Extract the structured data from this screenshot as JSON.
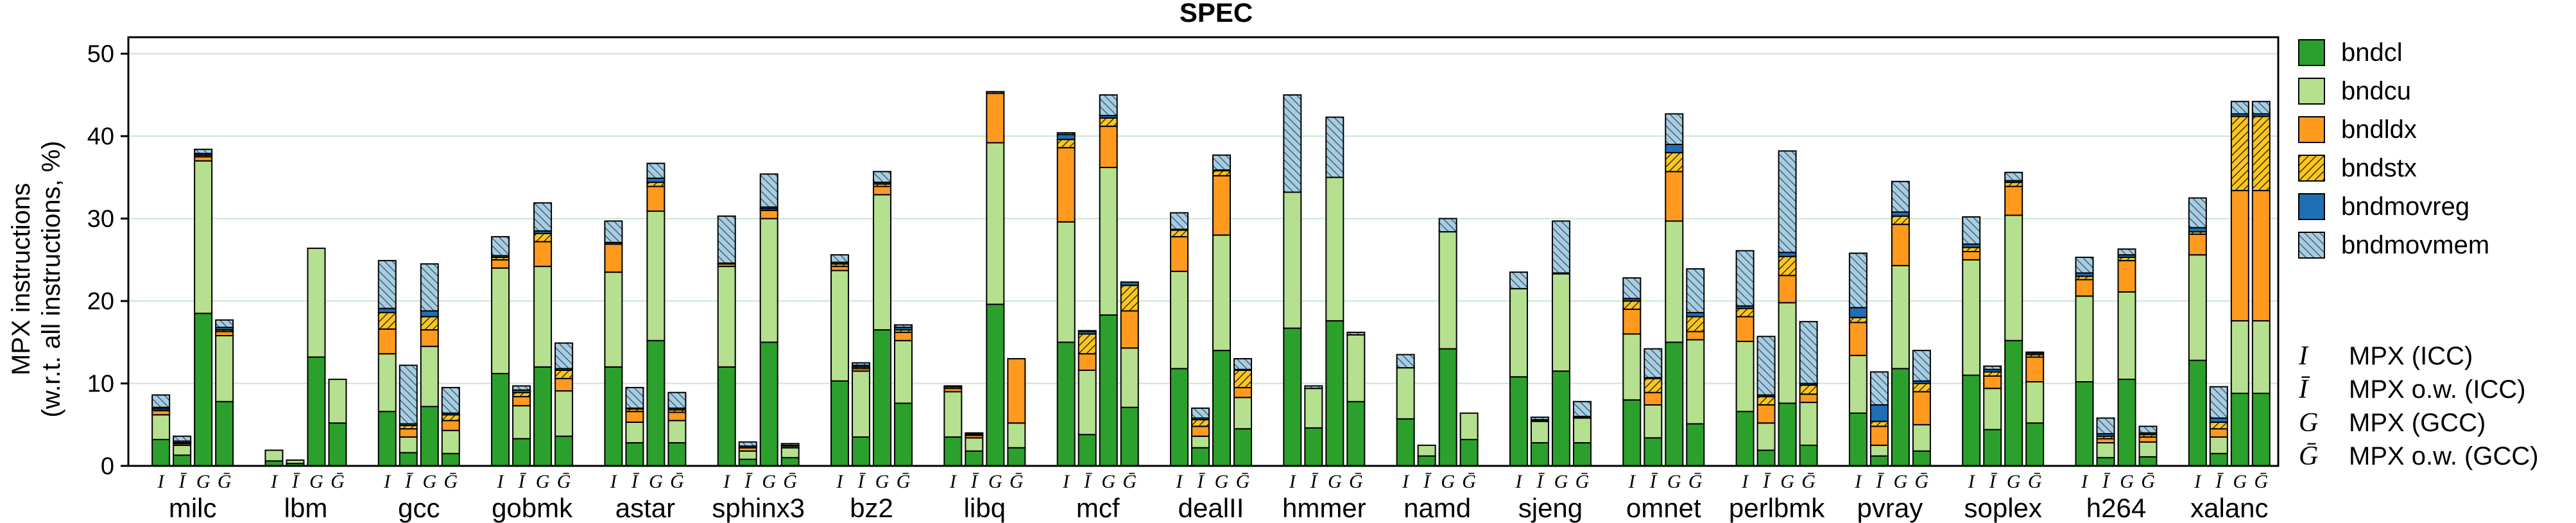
{
  "chart_data": {
    "type": "bar",
    "stacked": true,
    "title": "SPEC",
    "ylabel_lines": [
      "MPX instructions",
      "(w.r.t. all instructions, %)"
    ],
    "ylim": [
      0,
      52
    ],
    "yticks": [
      0,
      10,
      20,
      30,
      40,
      50
    ],
    "grid": "horizontal",
    "legend_position": "right",
    "categories": [
      "milc",
      "lbm",
      "gcc",
      "gobmk",
      "astar",
      "sphinx3",
      "bz2",
      "libq",
      "mcf",
      "dealII",
      "hmmer",
      "namd",
      "sjeng",
      "omnet",
      "perlbmk",
      "pvray",
      "soplex",
      "h264",
      "xalanc"
    ],
    "variants": [
      "I",
      "Ī",
      "G",
      "Ḡ"
    ],
    "variant_key": [
      {
        "symbol": "I",
        "label": "MPX (ICC)"
      },
      {
        "symbol": "Ī",
        "label": "MPX o.w. (ICC)"
      },
      {
        "symbol": "G",
        "label": "MPX (GCC)"
      },
      {
        "symbol": "Ḡ",
        "label": "MPX o.w. (GCC)"
      }
    ],
    "series": [
      {
        "name": "bndcl",
        "color": "#2ca02c",
        "pattern": "solid"
      },
      {
        "name": "bndcu",
        "color": "#b5e08f",
        "pattern": "solid"
      },
      {
        "name": "bndldx",
        "color": "#ff9a1f",
        "pattern": "solid"
      },
      {
        "name": "bndstx",
        "color": "#ffc51a",
        "pattern": "hatch"
      },
      {
        "name": "bndmovreg",
        "color": "#1f6fb4",
        "pattern": "solid"
      },
      {
        "name": "bndmovmem",
        "color": "#a6cee3",
        "pattern": "hatch"
      }
    ],
    "values": {
      "milc": [
        [
          3.2,
          3.0,
          0.5,
          0.2,
          0.2,
          1.5
        ],
        [
          1.3,
          1.2,
          0.2,
          0.1,
          0.2,
          0.6
        ],
        [
          18.5,
          18.5,
          0.5,
          0.2,
          0.2,
          0.5
        ],
        [
          7.8,
          8.0,
          0.5,
          0.2,
          0.3,
          0.9
        ]
      ],
      "lbm": [
        [
          0.6,
          1.3,
          0,
          0,
          0,
          0
        ],
        [
          0.3,
          0.4,
          0,
          0,
          0,
          0
        ],
        [
          13.2,
          13.2,
          0,
          0,
          0,
          0
        ],
        [
          5.2,
          5.3,
          0,
          0,
          0,
          0
        ]
      ],
      "gcc": [
        [
          6.6,
          7.0,
          3.0,
          2.0,
          0.5,
          5.8
        ],
        [
          1.6,
          1.9,
          1.0,
          0.4,
          0.2,
          7.1
        ],
        [
          7.2,
          7.3,
          2.0,
          1.6,
          0.7,
          5.7
        ],
        [
          1.5,
          2.8,
          1.2,
          0.7,
          0.2,
          3.1
        ]
      ],
      "gobmk": [
        [
          11.2,
          12.8,
          1.0,
          0.3,
          0.2,
          2.3
        ],
        [
          3.3,
          4.0,
          1.1,
          0.5,
          0.3,
          0.5
        ],
        [
          12.0,
          12.2,
          3.0,
          1.0,
          0.3,
          3.4
        ],
        [
          3.6,
          5.5,
          1.5,
          1.0,
          0.2,
          3.1
        ]
      ],
      "astar": [
        [
          12.0,
          11.5,
          3.4,
          0,
          0.2,
          2.6
        ],
        [
          2.8,
          2.5,
          1.3,
          0.3,
          0.1,
          2.5
        ],
        [
          15.2,
          15.7,
          3.0,
          0.5,
          0.5,
          1.8
        ],
        [
          2.8,
          2.7,
          1.0,
          0.3,
          0.2,
          1.9
        ]
      ],
      "sphinx3": [
        [
          12.0,
          12.2,
          0.3,
          0,
          0.1,
          5.7
        ],
        [
          0.8,
          1.0,
          0.4,
          0,
          0.2,
          0.5
        ],
        [
          15.0,
          15.0,
          1.0,
          0.2,
          0.2,
          4.0
        ],
        [
          1.0,
          1.2,
          0.2,
          0,
          0.1,
          0.2
        ]
      ],
      "bz2": [
        [
          10.3,
          13.4,
          0.5,
          0.3,
          0.2,
          0.9
        ],
        [
          3.5,
          8.0,
          0.3,
          0.2,
          0.2,
          0.3
        ],
        [
          16.5,
          16.4,
          1.0,
          0.3,
          0.2,
          1.3
        ],
        [
          7.6,
          7.6,
          1.0,
          0.3,
          0.3,
          0.3
        ]
      ],
      "libq": [
        [
          3.5,
          5.5,
          0.4,
          0.2,
          0.1,
          0
        ],
        [
          1.8,
          1.6,
          0.3,
          0.1,
          0.1,
          0.1
        ],
        [
          19.6,
          19.6,
          6.0,
          0,
          0,
          0.2
        ],
        [
          2.2,
          3.0,
          7.8,
          0,
          0,
          0
        ]
      ],
      "mcf": [
        [
          15.0,
          14.6,
          9.0,
          1.0,
          0.6,
          0.2
        ],
        [
          3.8,
          7.8,
          2.0,
          2.4,
          0.3,
          0.1
        ],
        [
          18.3,
          17.9,
          5.0,
          1.0,
          0.3,
          2.5
        ],
        [
          7.1,
          7.2,
          4.5,
          3.1,
          0.4,
          0
        ]
      ],
      "dealII": [
        [
          11.8,
          11.8,
          4.2,
          0.8,
          0.1,
          2.0
        ],
        [
          2.2,
          1.4,
          1.2,
          0.8,
          0.2,
          1.2
        ],
        [
          14.0,
          14.0,
          7.2,
          0.6,
          0.1,
          1.8
        ],
        [
          4.5,
          3.8,
          1.2,
          2.1,
          0.1,
          1.3
        ]
      ],
      "hmmer": [
        [
          16.7,
          16.5,
          0,
          0,
          0,
          11.8
        ],
        [
          4.6,
          4.8,
          0,
          0,
          0,
          0.3
        ],
        [
          17.6,
          17.4,
          0,
          0,
          0,
          7.3
        ],
        [
          7.8,
          8.1,
          0,
          0,
          0,
          0.3
        ]
      ],
      "namd": [
        [
          5.7,
          6.2,
          0,
          0,
          0,
          1.6
        ],
        [
          1.2,
          1.3,
          0,
          0,
          0,
          0
        ],
        [
          14.2,
          14.2,
          0,
          0,
          0,
          1.6
        ],
        [
          3.2,
          3.2,
          0,
          0,
          0,
          0
        ]
      ],
      "sjeng": [
        [
          10.8,
          10.7,
          0,
          0,
          0,
          2.0
        ],
        [
          2.8,
          2.6,
          0.1,
          0.1,
          0,
          0.3
        ],
        [
          11.5,
          11.8,
          0.1,
          0,
          0,
          6.3
        ],
        [
          2.8,
          3.0,
          0.1,
          0.1,
          0,
          1.8
        ]
      ],
      "omnet": [
        [
          8.0,
          8.0,
          3.0,
          1.0,
          0.3,
          2.5
        ],
        [
          3.4,
          4.0,
          1.5,
          1.7,
          0.1,
          3.5
        ],
        [
          15.0,
          14.7,
          6.0,
          2.3,
          1.0,
          3.7
        ],
        [
          5.1,
          10.2,
          1.0,
          1.8,
          0.5,
          5.3
        ]
      ],
      "perlbmk": [
        [
          6.6,
          8.5,
          3.0,
          1.0,
          0.3,
          6.7
        ],
        [
          1.9,
          3.3,
          2.2,
          1.0,
          0.2,
          7.1
        ],
        [
          7.6,
          12.2,
          3.3,
          2.3,
          0.5,
          12.3
        ],
        [
          2.5,
          5.2,
          1.0,
          1.1,
          0.2,
          7.5
        ]
      ],
      "pvray": [
        [
          6.4,
          7.0,
          4.0,
          0.6,
          1.2,
          6.6
        ],
        [
          1.2,
          1.3,
          2.3,
          0.6,
          2.0,
          4.0
        ],
        [
          11.8,
          12.5,
          5.0,
          1.0,
          0.5,
          3.7
        ],
        [
          1.8,
          3.2,
          4.0,
          1.0,
          0.3,
          3.7
        ]
      ],
      "soplex": [
        [
          11.0,
          14.0,
          1.0,
          0.5,
          0.4,
          3.3
        ],
        [
          4.4,
          5.0,
          1.5,
          0.5,
          0.3,
          0.4
        ],
        [
          15.2,
          15.2,
          3.5,
          0.5,
          0.2,
          1.0
        ],
        [
          5.2,
          5.0,
          3.0,
          0.3,
          0.2,
          0.1
        ]
      ],
      "h264": [
        [
          10.2,
          10.4,
          2.0,
          0.4,
          0.4,
          1.9
        ],
        [
          1.0,
          1.8,
          0.5,
          0.3,
          0.3,
          1.9
        ],
        [
          10.5,
          10.6,
          3.8,
          0.4,
          0.3,
          0.7
        ],
        [
          1.1,
          1.8,
          0.6,
          0.3,
          0.2,
          0.8
        ]
      ],
      "xalanc": [
        [
          12.8,
          12.8,
          2.5,
          0.3,
          0.5,
          3.6
        ],
        [
          1.5,
          2.0,
          1.0,
          0.8,
          0.5,
          3.8
        ],
        [
          8.8,
          8.8,
          15.8,
          9.0,
          0.3,
          1.5
        ],
        [
          8.8,
          8.8,
          15.8,
          9.0,
          0.3,
          1.5
        ]
      ]
    }
  }
}
